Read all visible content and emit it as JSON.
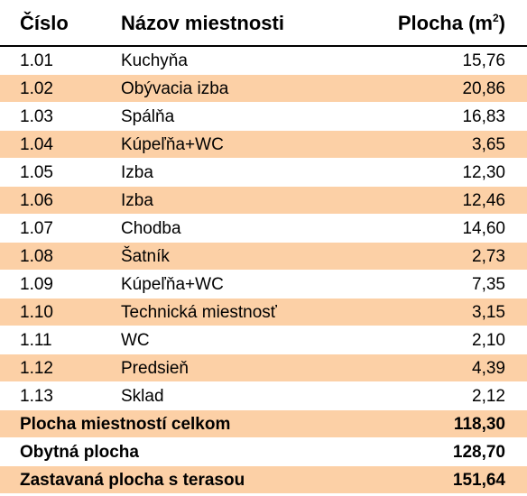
{
  "headers": {
    "number": "Číslo",
    "name": "Názov miestnosti",
    "area": "Plocha (m",
    "area_sup": "2",
    "area_close": ")"
  },
  "rooms": [
    {
      "number": "1.01",
      "name": "Kuchyňa",
      "area": "15,76"
    },
    {
      "number": "1.02",
      "name": "Obývacia izba",
      "area": "20,86"
    },
    {
      "number": "1.03",
      "name": "Spálňa",
      "area": "16,83"
    },
    {
      "number": "1.04",
      "name": "Kúpeľňa+WC",
      "area": "3,65"
    },
    {
      "number": "1.05",
      "name": "Izba",
      "area": "12,30"
    },
    {
      "number": "1.06",
      "name": "Izba",
      "area": "12,46"
    },
    {
      "number": "1.07",
      "name": "Chodba",
      "area": "14,60"
    },
    {
      "number": "1.08",
      "name": "Šatník",
      "area": "2,73"
    },
    {
      "number": "1.09",
      "name": "Kúpeľňa+WC",
      "area": "7,35"
    },
    {
      "number": "1.10",
      "name": "Technická miestnosť",
      "area": "3,15"
    },
    {
      "number": "1.11",
      "name": "WC",
      "area": "2,10"
    },
    {
      "number": "1.12",
      "name": "Predsieň",
      "area": "4,39"
    },
    {
      "number": "1.13",
      "name": "Sklad",
      "area": "2,12"
    }
  ],
  "totals": [
    {
      "label": "Plocha miestností celkom",
      "value": "118,30"
    },
    {
      "label": "Obytná plocha",
      "value": "128,70"
    },
    {
      "label": "Zastavaná plocha s terasou",
      "value": "151,64"
    }
  ],
  "colors": {
    "band": "#fcd0a6",
    "text": "#000000"
  }
}
